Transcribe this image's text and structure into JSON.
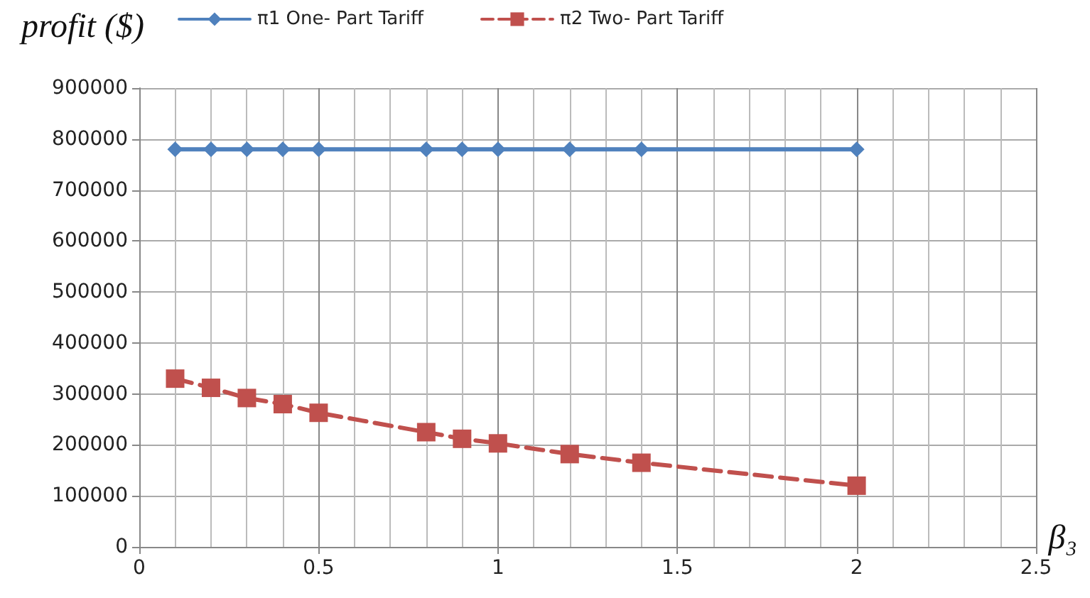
{
  "chart_data": {
    "type": "line",
    "ylabel": "profit ($)",
    "xlabel": "β₃",
    "x": [
      0.1,
      0.2,
      0.3,
      0.4,
      0.5,
      0.8,
      0.9,
      1.0,
      1.2,
      1.4,
      2.0
    ],
    "series": [
      {
        "name": "π1 One- Part Tariff",
        "color": "#4f81bd",
        "marker": "diamond",
        "line_style": "solid",
        "values": [
          780000,
          780000,
          780000,
          780000,
          780000,
          780000,
          780000,
          780000,
          780000,
          780000,
          780000
        ]
      },
      {
        "name": "π2 Two- Part Tariff",
        "color": "#c0504d",
        "marker": "square",
        "line_style": "dashed",
        "values": [
          330000,
          312000,
          292000,
          280000,
          263000,
          225000,
          212000,
          203000,
          182000,
          165000,
          120000
        ]
      }
    ],
    "xlim": [
      0,
      2.5
    ],
    "xticks": [
      0,
      0.5,
      1,
      1.5,
      2,
      2.5
    ],
    "ylim": [
      0,
      900000
    ],
    "yticks": [
      0,
      100000,
      200000,
      300000,
      400000,
      500000,
      600000,
      700000,
      800000,
      900000
    ],
    "grid": true,
    "legend": "top"
  }
}
